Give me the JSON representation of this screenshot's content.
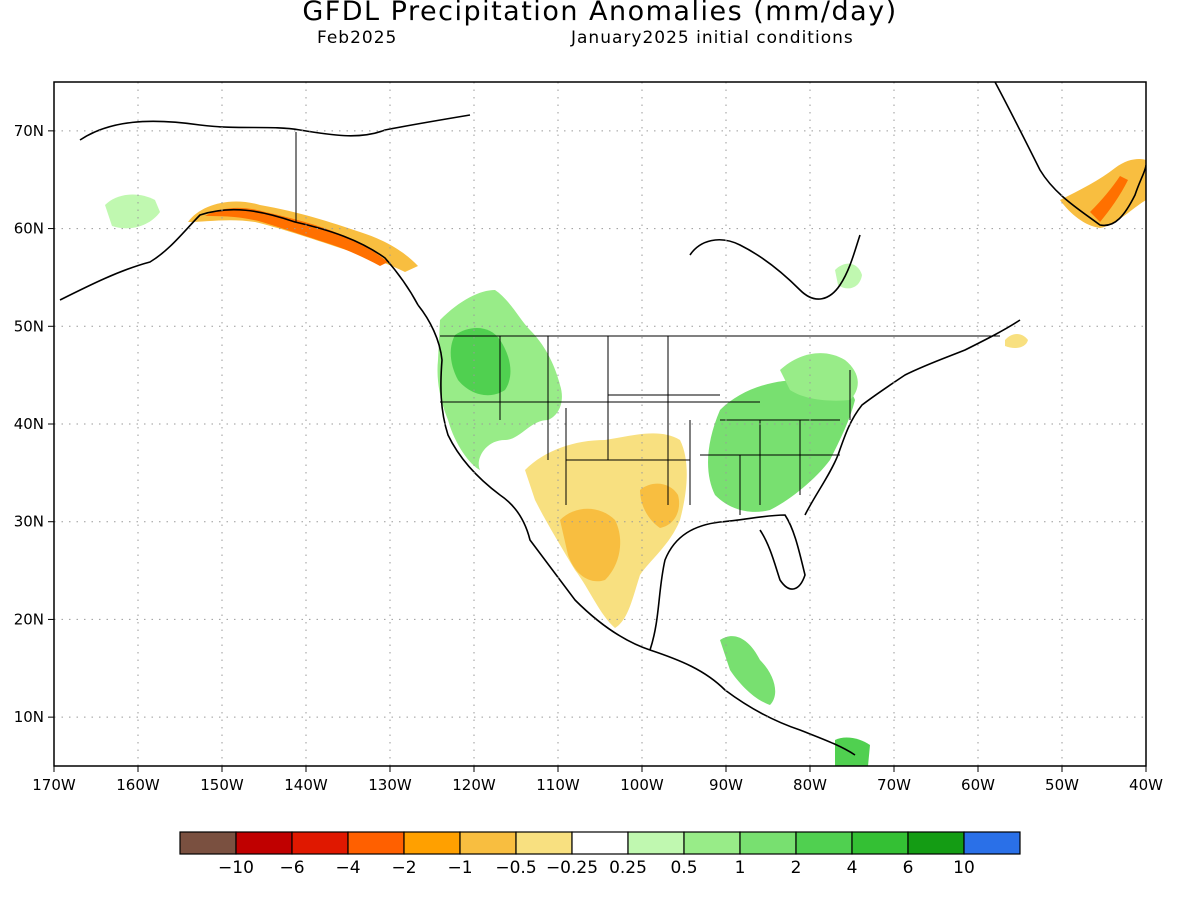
{
  "title": "GFDL Precipitation Anomalies (mm/day)",
  "subtitle_left": "Feb2025",
  "subtitle_right": "January2025 initial conditions",
  "map": {
    "lon_range": [
      -170,
      -40
    ],
    "lat_range": [
      5,
      75
    ],
    "lon_labels": [
      "170W",
      "160W",
      "150W",
      "140W",
      "130W",
      "120W",
      "110W",
      "100W",
      "90W",
      "80W",
      "70W",
      "60W",
      "50W",
      "40W"
    ],
    "lat_labels": [
      "10N",
      "20N",
      "30N",
      "40N",
      "50N",
      "60N",
      "70N"
    ],
    "gridlines": "dotted"
  },
  "colorbar": {
    "colors": [
      "#7a5040",
      "#c00000",
      "#e01800",
      "#ff6000",
      "#ffa000",
      "#f8be40",
      "#f8e080",
      "#ffffff",
      "#c0f8b0",
      "#98ec88",
      "#78e070",
      "#50d050",
      "#34c034",
      "#149c14",
      "#2a70e8"
    ],
    "labels": [
      "−10",
      "−6",
      "−4",
      "−2",
      "−1",
      "−0.5",
      "−0.25",
      "0.25",
      "0.5",
      "1",
      "2",
      "4",
      "6",
      "10"
    ]
  },
  "colors": {
    "wet": "#78e070",
    "wet_light": "#c0f8b0",
    "wet_strong": "#34c034",
    "dry_light": "#f8e080",
    "dry": "#f8be40",
    "dry_strong": "#ffa000",
    "very_dry": "#ff6000"
  }
}
